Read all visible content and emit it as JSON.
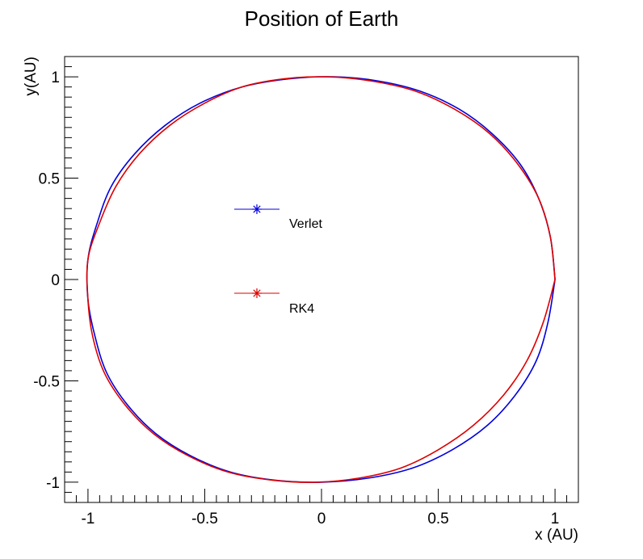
{
  "chart_data": {
    "type": "line",
    "title": "Position of Earth",
    "xlabel": "x (AU)",
    "ylabel": "y(AU)",
    "xlim": [
      -1.1,
      1.1
    ],
    "ylim": [
      -1.1,
      1.1
    ],
    "x_ticks": [
      -1,
      -0.5,
      0,
      0.5,
      1
    ],
    "y_ticks": [
      -1,
      -0.5,
      0,
      0.5,
      1
    ],
    "x_tick_labels": [
      "-1",
      "-0.5",
      "0",
      "0.5",
      "1"
    ],
    "y_tick_labels": [
      "-1",
      "-0.5",
      "0",
      "0.5",
      "1"
    ],
    "grid": false,
    "legend_position": "center-left",
    "series": [
      {
        "name": "Verlet",
        "color": "#0000dd",
        "marker": "asterisk",
        "points": [
          [
            1.0,
            0.0
          ],
          [
            0.98,
            0.21
          ],
          [
            0.93,
            0.4
          ],
          [
            0.85,
            0.57
          ],
          [
            0.73,
            0.72
          ],
          [
            0.59,
            0.84
          ],
          [
            0.42,
            0.93
          ],
          [
            0.24,
            0.98
          ],
          [
            0.05,
            1.0
          ],
          [
            -0.14,
            0.99
          ],
          [
            -0.34,
            0.95
          ],
          [
            -0.52,
            0.87
          ],
          [
            -0.67,
            0.76
          ],
          [
            -0.8,
            0.62
          ],
          [
            -0.9,
            0.46
          ],
          [
            -0.96,
            0.28
          ],
          [
            -1.0,
            0.1
          ],
          [
            -1.0,
            -0.1
          ],
          [
            -0.97,
            -0.28
          ],
          [
            -0.92,
            -0.46
          ],
          [
            -0.83,
            -0.62
          ],
          [
            -0.71,
            -0.76
          ],
          [
            -0.56,
            -0.87
          ],
          [
            -0.39,
            -0.95
          ],
          [
            -0.2,
            -0.99
          ],
          [
            0.0,
            -1.0
          ],
          [
            0.2,
            -0.98
          ],
          [
            0.39,
            -0.93
          ],
          [
            0.56,
            -0.84
          ],
          [
            0.71,
            -0.72
          ],
          [
            0.83,
            -0.57
          ],
          [
            0.92,
            -0.4
          ],
          [
            0.97,
            -0.21
          ],
          [
            1.0,
            0.0
          ]
        ]
      },
      {
        "name": "RK4",
        "color": "#dd0000",
        "marker": "asterisk",
        "points": [
          [
            1.0,
            0.0
          ],
          [
            0.98,
            0.21
          ],
          [
            0.93,
            0.4
          ],
          [
            0.84,
            0.57
          ],
          [
            0.72,
            0.72
          ],
          [
            0.57,
            0.84
          ],
          [
            0.4,
            0.93
          ],
          [
            0.21,
            0.98
          ],
          [
            0.02,
            1.0
          ],
          [
            -0.16,
            0.99
          ],
          [
            -0.34,
            0.95
          ],
          [
            -0.5,
            0.87
          ],
          [
            -0.65,
            0.76
          ],
          [
            -0.78,
            0.62
          ],
          [
            -0.88,
            0.46
          ],
          [
            -0.95,
            0.28
          ],
          [
            -1.0,
            0.1
          ],
          [
            -1.0,
            -0.1
          ],
          [
            -0.98,
            -0.28
          ],
          [
            -0.93,
            -0.46
          ],
          [
            -0.84,
            -0.62
          ],
          [
            -0.72,
            -0.76
          ],
          [
            -0.57,
            -0.87
          ],
          [
            -0.4,
            -0.95
          ],
          [
            -0.21,
            -0.99
          ],
          [
            -0.02,
            -1.0
          ],
          [
            0.16,
            -0.98
          ],
          [
            0.34,
            -0.93
          ],
          [
            0.5,
            -0.84
          ],
          [
            0.65,
            -0.72
          ],
          [
            0.78,
            -0.57
          ],
          [
            0.88,
            -0.4
          ],
          [
            0.95,
            -0.21
          ],
          [
            1.0,
            0.0
          ]
        ]
      }
    ]
  }
}
